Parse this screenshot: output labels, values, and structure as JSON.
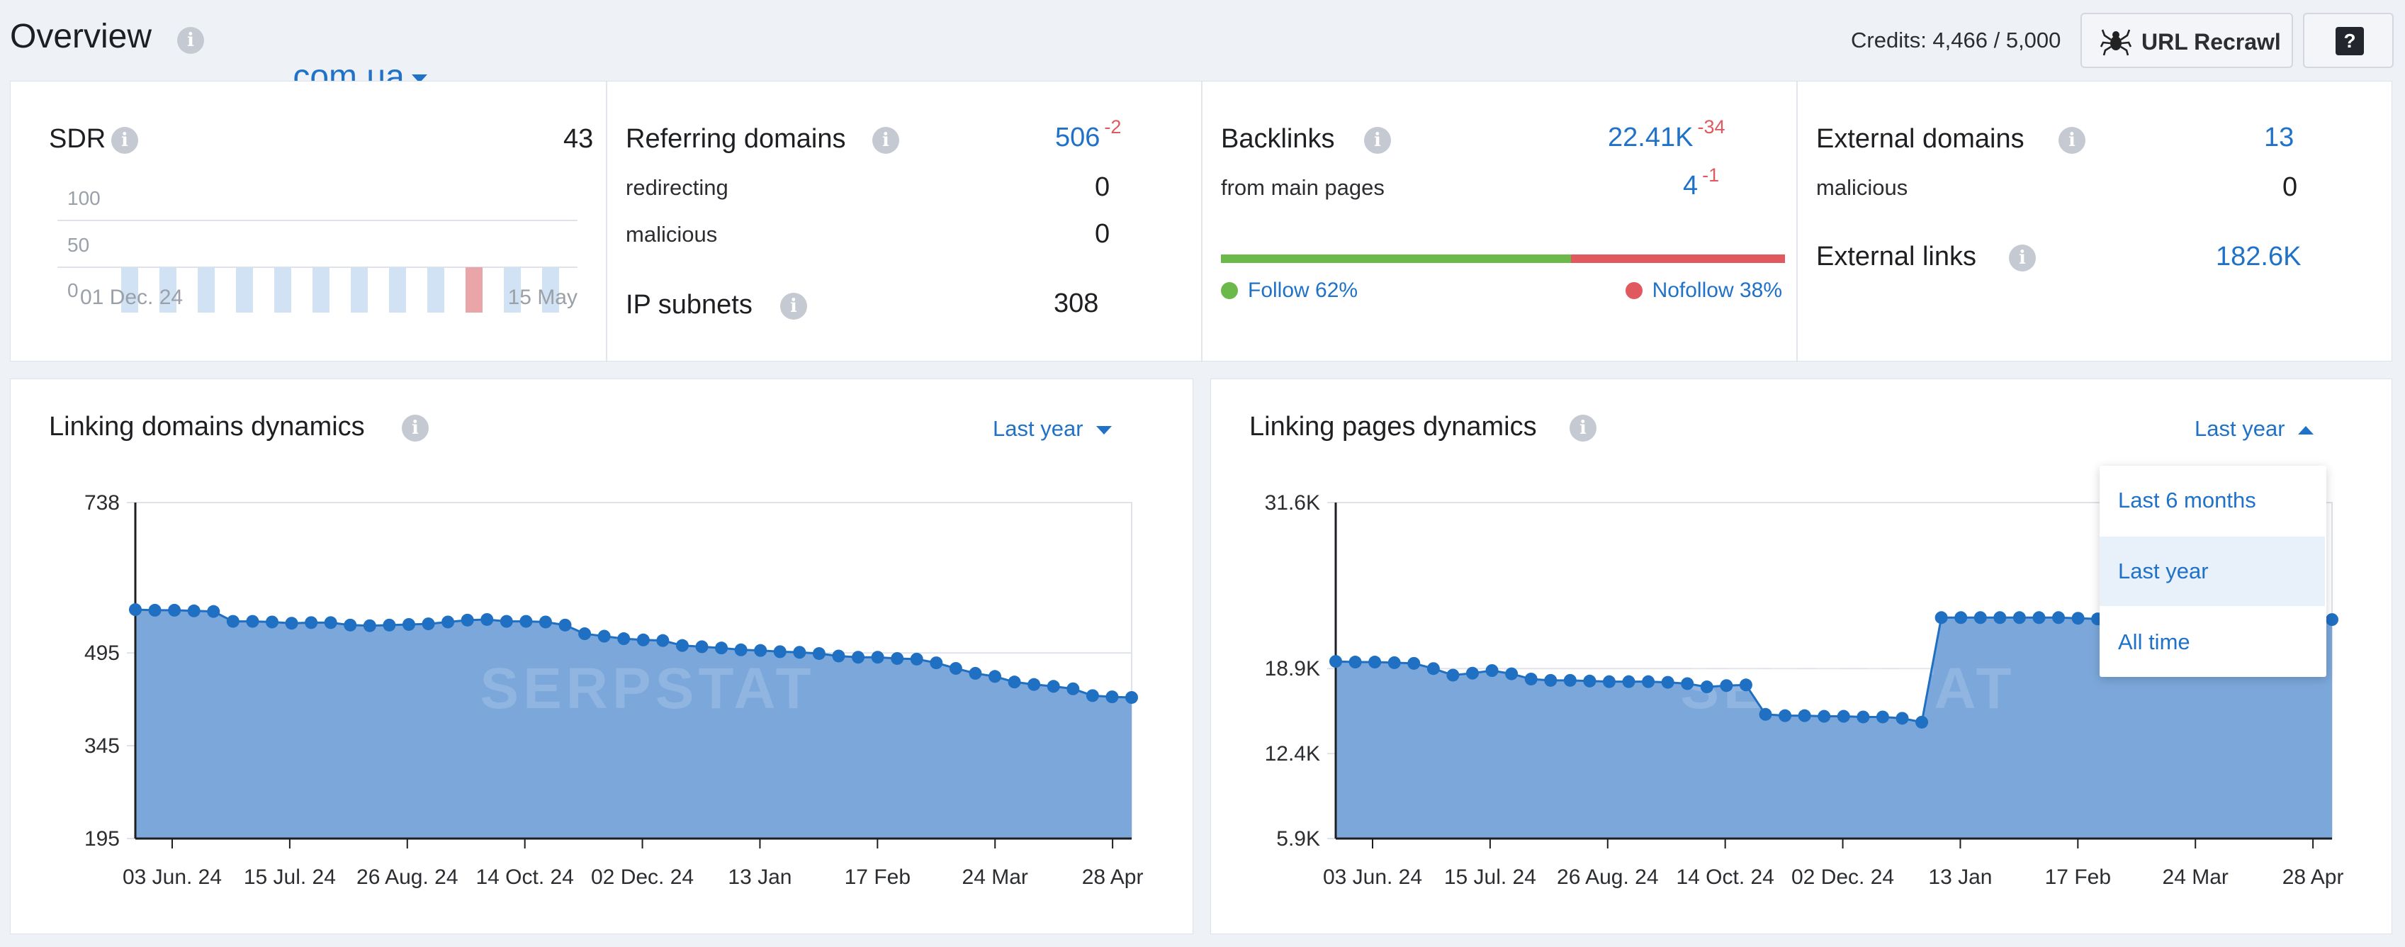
{
  "header": {
    "title": "Overview",
    "domain": "    .com.ua",
    "credits_label": "Credits: 4,466 / 5,000",
    "recrawl_label": "URL Recrawl",
    "help_label": "?"
  },
  "sdr": {
    "label": "SDR",
    "value": "43",
    "y_ticks": [
      "100",
      "50",
      "0"
    ],
    "x_start": "01 Dec. 24",
    "x_end": "15 May",
    "bars": [
      50,
      50,
      50,
      50,
      50,
      50,
      50,
      50,
      50,
      50,
      50,
      50
    ],
    "highlight_index": 9,
    "colors": {
      "bar": "#d1e2f4",
      "highlight": "#eaa5a8"
    }
  },
  "referring": {
    "label": "Referring domains",
    "value": "506",
    "delta": "-2",
    "redirecting_label": "redirecting",
    "redirecting_value": "0",
    "malicious_label": "malicious",
    "malicious_value": "0",
    "ip_label": "IP subnets",
    "ip_value": "308"
  },
  "backlinks": {
    "label": "Backlinks",
    "value": "22.41K",
    "delta": "-34",
    "main_label": "from main pages",
    "main_value": "4",
    "main_delta": "-1",
    "follow_label": "Follow 62%",
    "nofollow_label": "Nofollow 38%",
    "follow_fraction": 0.62,
    "colors": {
      "follow": "#6cb94b",
      "nofollow": "#e0595f"
    }
  },
  "external": {
    "label": "External domains",
    "value": "13",
    "malicious_label": "malicious",
    "malicious_value": "0",
    "links_label": "External links",
    "links_value": "182.6K"
  },
  "linking_domains": {
    "title": "Linking domains dynamics",
    "period": "Last year",
    "watermark": "SERPSTAT"
  },
  "linking_pages": {
    "title": "Linking pages dynamics",
    "period": "Last year",
    "watermark": "SERPSTAT",
    "dropdown": [
      "Last 6 months",
      "Last year",
      "All time"
    ],
    "dropdown_selected": 1
  },
  "chart_data": [
    {
      "type": "area",
      "title": "Linking domains dynamics",
      "ylim": [
        195,
        738
      ],
      "y_ticks": [
        "738",
        "495",
        "345",
        "195"
      ],
      "y_tick_values": [
        738,
        495,
        345,
        195
      ],
      "x_ticks": [
        "03 Jun. 24",
        "15 Jul. 24",
        "26 Aug. 24",
        "14 Oct. 24",
        "02 Dec. 24",
        "13 Jan",
        "17 Feb",
        "24 Mar",
        "28 Apr"
      ],
      "values": [
        565,
        564,
        564,
        563,
        562,
        546,
        546,
        545,
        543,
        544,
        544,
        540,
        539,
        540,
        541,
        542,
        545,
        548,
        549,
        546,
        546,
        545,
        540,
        526,
        522,
        518,
        516,
        515,
        507,
        505,
        503,
        500,
        499,
        497,
        496,
        494,
        490,
        488,
        488,
        486,
        485,
        479,
        470,
        462,
        457,
        448,
        444,
        441,
        437,
        426,
        424,
        423
      ]
    },
    {
      "type": "area",
      "title": "Linking pages dynamics",
      "ylim": [
        5900,
        31600
      ],
      "y_ticks": [
        "31.6K",
        "18.9K",
        "12.4K",
        "5.9K"
      ],
      "y_tick_values": [
        31600,
        18900,
        12400,
        5900
      ],
      "x_ticks": [
        "03 Jun. 24",
        "15 Jul. 24",
        "26 Aug. 24",
        "14 Oct. 24",
        "02 Dec. 24",
        "13 Jan",
        "17 Feb",
        "24 Mar",
        "28 Apr"
      ],
      "values": [
        19450,
        19400,
        19400,
        19350,
        19300,
        18900,
        18400,
        18550,
        18750,
        18500,
        18100,
        18000,
        18000,
        17950,
        17900,
        17900,
        17900,
        17850,
        17750,
        17500,
        17600,
        17650,
        15400,
        15300,
        15300,
        15250,
        15250,
        15200,
        15200,
        15100,
        14800,
        22800,
        22800,
        22800,
        22800,
        22800,
        22800,
        22800,
        22750,
        22700,
        22700,
        22700,
        22700,
        22700,
        22700,
        22700,
        22700,
        22700,
        22700,
        22650,
        22650,
        22650
      ]
    }
  ]
}
